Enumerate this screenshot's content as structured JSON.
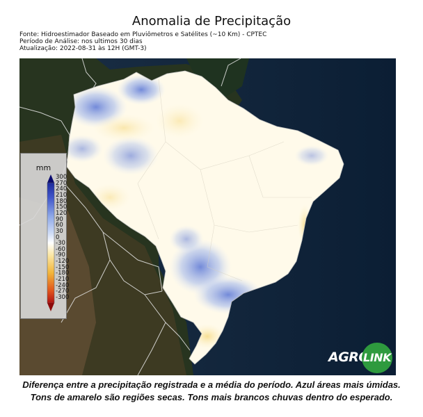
{
  "header": {
    "title": "Anomalia de Precipitação",
    "source": "Fonte: Hidroestimador Baseado em Pluviômetros e Satélites (~10 Km) - CPTEC",
    "period": "Período de Análise: nos ultimos 30 dias",
    "updated": "Atualização: 2022-08-31 às 12H (GMT-3)"
  },
  "legend": {
    "unit": "mm",
    "ticks": [
      "300",
      "270",
      "240",
      "210",
      "180",
      "150",
      "120",
      "90",
      "60",
      "30",
      "0",
      "-30",
      "-60",
      "-90",
      "-120",
      "-150",
      "-180",
      "-210",
      "-240",
      "-270",
      "-300"
    ],
    "colors": {
      "top": "#0a0a6e",
      "wet_strong": "#3f55c9",
      "wet_mid": "#8fa9e8",
      "wet_light": "#cfdcf6",
      "neutral": "#ffffff",
      "dry_light": "#fbe7a6",
      "dry_mid": "#f2b53a",
      "dry_strong": "#e0531c",
      "bottom": "#8c0a0a"
    }
  },
  "logo": {
    "part1": "AGRO",
    "part2": "LINK",
    "color": "#2e9a3e"
  },
  "caption": "Diferença entre a precipitação registrada e a média do período. Azul áreas mais úmidas. Tons de amarelo são regiões secas. Tons mais brancos chuvas dentro do esperado."
}
